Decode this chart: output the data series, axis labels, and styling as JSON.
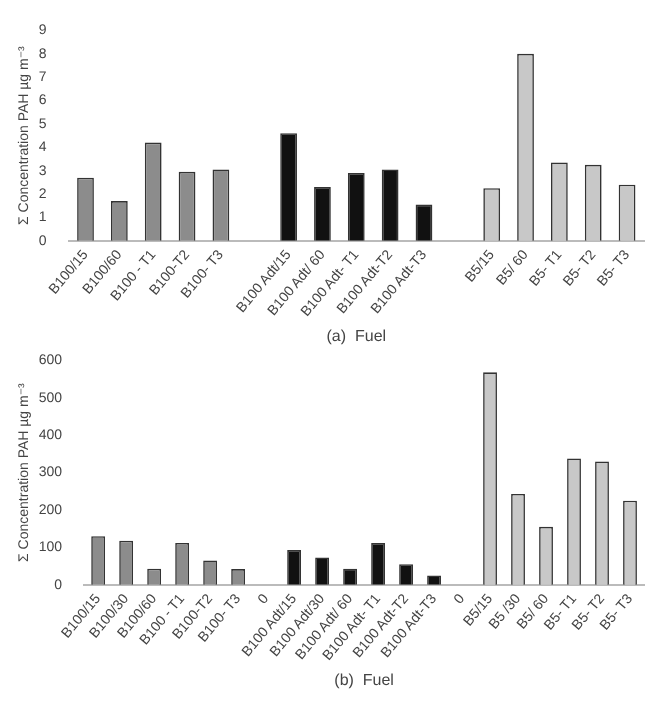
{
  "chart_data": [
    {
      "type": "bar",
      "xlabel": "(a)  Fuel",
      "ylabel": "Σ Concentration PAH µg m⁻³",
      "categories": [
        "B100/15",
        "B100/60",
        "B100 - T1",
        "B100-T2",
        "B100- T3",
        null,
        "B100 Adt/15",
        "B100 Adt/ 60",
        "B100 Adt- T1",
        "B100 Adt-T2",
        "B100 Adt-T3",
        null,
        "B5/15",
        "B5/ 60",
        "B5- T1",
        "B5- T2",
        "B5- T3"
      ],
      "values": [
        2.7,
        1.7,
        4.2,
        2.95,
        3.05,
        null,
        4.6,
        2.3,
        2.9,
        3.05,
        1.55,
        null,
        2.25,
        8.0,
        3.35,
        3.25,
        2.4
      ],
      "colors": [
        "#8c8c8c",
        "#8c8c8c",
        "#8c8c8c",
        "#8c8c8c",
        "#8c8c8c",
        "#8c8c8c",
        "#111111",
        "#111111",
        "#111111",
        "#111111",
        "#111111",
        "#111111",
        "#c8c8c8",
        "#c8c8c8",
        "#c8c8c8",
        "#c8c8c8",
        "#c8c8c8"
      ],
      "ylim": [
        0,
        9
      ],
      "yticks": [
        0,
        1,
        2,
        3,
        4,
        5,
        6,
        7,
        8,
        9
      ],
      "grid": false,
      "legend": false
    },
    {
      "type": "bar",
      "xlabel": "(b)  Fuel",
      "ylabel": "Σ Concentration PAH µg m⁻³",
      "categories": [
        "B100/15",
        "B100/30",
        "B100/60",
        "B100 - T1",
        "B100-T2",
        "B100- T3",
        "0",
        "B100 Adt/15",
        "B100 Adt/30",
        "B100 Adt/ 60",
        "B100 Adt- T1",
        "B100 Adt-T2",
        "B100 Adt-T3",
        "0",
        "B5/15",
        "B5 /30",
        "B5/ 60",
        "B5- T1",
        "B5- T2",
        "B5- T3"
      ],
      "values": [
        130,
        118,
        43,
        112,
        65,
        42,
        null,
        93,
        73,
        43,
        112,
        55,
        25,
        null,
        568,
        243,
        155,
        338,
        330,
        225
      ],
      "colors": [
        "#8c8c8c",
        "#8c8c8c",
        "#8c8c8c",
        "#8c8c8c",
        "#8c8c8c",
        "#8c8c8c",
        "#8c8c8c",
        "#111111",
        "#111111",
        "#111111",
        "#111111",
        "#111111",
        "#111111",
        "#111111",
        "#c8c8c8",
        "#c8c8c8",
        "#c8c8c8",
        "#c8c8c8",
        "#c8c8c8",
        "#c8c8c8"
      ],
      "ylim": [
        0,
        600
      ],
      "yticks": [
        0,
        100,
        200,
        300,
        400,
        500,
        600
      ],
      "grid": false,
      "legend": false
    }
  ]
}
